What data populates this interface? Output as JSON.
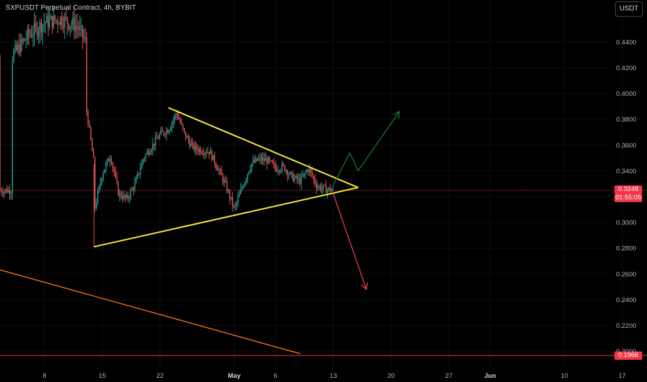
{
  "header": {
    "title": "SXPUSDT Perpetual Contract, 4h, BYBIT",
    "currency_button": "USDT"
  },
  "current_price": {
    "label": "0.3248",
    "countdown": "01:55:05",
    "color": "#f23645"
  },
  "support_price": {
    "label": "0.1966",
    "color": "#f23645"
  },
  "chart_data": {
    "type": "candlestick",
    "title": "SXPUSDT Perpetual Contract, 4h, BYBIT",
    "xlabel": "",
    "ylabel": "",
    "ylim": [
      0.19,
      0.465
    ],
    "y_tick_labels": [
      "0.2000",
      "0.2200",
      "0.2400",
      "0.2600",
      "0.2800",
      "0.3000",
      "0.3200",
      "0.3400",
      "0.3600",
      "0.3800",
      "0.4000",
      "0.4200",
      "0.4400"
    ],
    "x_tick_labels": [
      {
        "label": "8",
        "date": "2024-04-08"
      },
      {
        "label": "15",
        "date": "2024-04-15"
      },
      {
        "label": "22",
        "date": "2024-04-22"
      },
      {
        "label": "May",
        "date": "2024-05-01"
      },
      {
        "label": "6",
        "date": "2024-05-06"
      },
      {
        "label": "13",
        "date": "2024-05-13"
      },
      {
        "label": "20",
        "date": "2024-05-20"
      },
      {
        "label": "27",
        "date": "2024-05-27"
      },
      {
        "label": "Jun",
        "date": "2024-06-01"
      },
      {
        "label": "10",
        "date": "2024-06-10"
      },
      {
        "label": "17",
        "date": "2024-06-17"
      }
    ],
    "price_path": [
      {
        "date": "2024-04-04",
        "price": 0.428
      },
      {
        "date": "2024-04-06",
        "price": 0.445
      },
      {
        "date": "2024-04-08",
        "price": 0.455
      },
      {
        "date": "2024-04-10",
        "price": 0.458
      },
      {
        "date": "2024-04-12",
        "price": 0.452
      },
      {
        "date": "2024-04-13",
        "price": 0.44
      },
      {
        "date": "2024-04-13",
        "price": 0.392
      },
      {
        "date": "2024-04-14",
        "price": 0.345
      },
      {
        "date": "2024-04-14",
        "price": 0.308
      },
      {
        "date": "2024-04-15",
        "price": 0.338
      },
      {
        "date": "2024-04-16",
        "price": 0.352
      },
      {
        "date": "2024-04-17",
        "price": 0.322
      },
      {
        "date": "2024-04-18",
        "price": 0.318
      },
      {
        "date": "2024-04-19",
        "price": 0.33
      },
      {
        "date": "2024-04-20",
        "price": 0.35
      },
      {
        "date": "2024-04-22",
        "price": 0.368
      },
      {
        "date": "2024-04-23",
        "price": 0.372
      },
      {
        "date": "2024-04-24",
        "price": 0.385
      },
      {
        "date": "2024-04-25",
        "price": 0.368
      },
      {
        "date": "2024-04-26",
        "price": 0.358
      },
      {
        "date": "2024-04-27",
        "price": 0.356
      },
      {
        "date": "2024-04-28",
        "price": 0.355
      },
      {
        "date": "2024-04-29",
        "price": 0.342
      },
      {
        "date": "2024-04-30",
        "price": 0.328
      },
      {
        "date": "2024-05-01",
        "price": 0.31
      },
      {
        "date": "2024-05-02",
        "price": 0.328
      },
      {
        "date": "2024-05-03",
        "price": 0.345
      },
      {
        "date": "2024-05-04",
        "price": 0.349
      },
      {
        "date": "2024-05-05",
        "price": 0.348
      },
      {
        "date": "2024-05-06",
        "price": 0.342
      },
      {
        "date": "2024-05-07",
        "price": 0.343
      },
      {
        "date": "2024-05-08",
        "price": 0.335
      },
      {
        "date": "2024-05-09",
        "price": 0.332
      },
      {
        "date": "2024-05-10",
        "price": 0.342
      },
      {
        "date": "2024-05-11",
        "price": 0.328
      },
      {
        "date": "2024-05-12",
        "price": 0.326
      },
      {
        "date": "2024-05-13",
        "price": 0.3248
      }
    ],
    "triangle": {
      "color": "#ffeb3b",
      "upper": [
        {
          "date": "2024-04-23",
          "price": 0.389
        },
        {
          "date": "2024-05-16",
          "price": 0.327
        }
      ],
      "lower": [
        {
          "date": "2024-04-14",
          "price": 0.281
        },
        {
          "date": "2024-05-16",
          "price": 0.327
        }
      ]
    },
    "bullish_path": {
      "color": "#1b7a2a",
      "points": [
        {
          "date": "2024-05-13",
          "price": 0.329
        },
        {
          "date": "2024-05-15",
          "price": 0.354
        },
        {
          "date": "2024-05-16",
          "price": 0.34
        },
        {
          "date": "2024-05-21",
          "price": 0.386
        }
      ]
    },
    "bearish_path": {
      "color": "#e0454f",
      "points": [
        {
          "date": "2024-05-13",
          "price": 0.322
        },
        {
          "date": "2024-05-17",
          "price": 0.248
        }
      ]
    },
    "orange_trendline": {
      "color": "#ff7a1a",
      "points": [
        {
          "date": "2024-04-01",
          "price": 0.266
        },
        {
          "date": "2024-05-09",
          "price": 0.198
        }
      ]
    },
    "horizontal_levels": [
      {
        "price": 0.3248,
        "style": "dotted",
        "color": "#f23645"
      },
      {
        "price": 0.1966,
        "style": "solid",
        "color": "#f23645"
      }
    ]
  }
}
